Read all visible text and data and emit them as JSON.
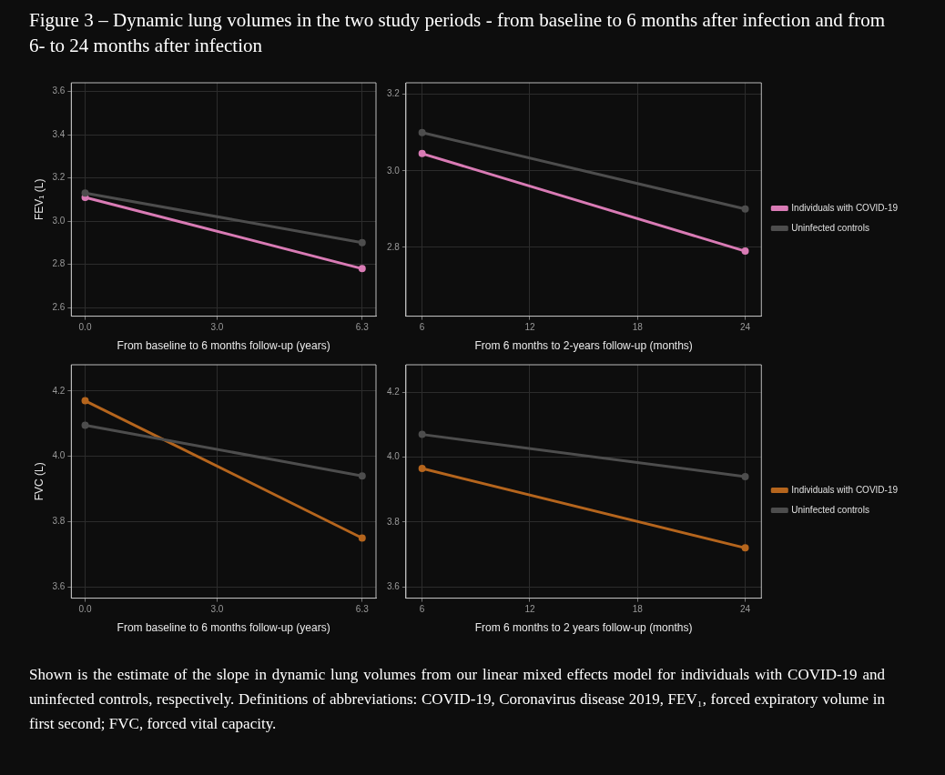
{
  "chart_data": [
    {
      "type": "line",
      "title": "Figure 3 – Dynamic lung volumes in the two study periods - from baseline to 6 months after infection and from 6- to 24 months after infection",
      "xlabel": "From baseline to 6 months follow-up (years)",
      "ylabel": "FEV₁ (L)",
      "x": [
        0,
        6.3
      ],
      "series": [
        {
          "color": "#4d4d4d",
          "values": [
            3.13,
            2.9
          ]
        },
        {
          "color": "#d97bb5",
          "values": [
            3.11,
            2.78
          ]
        }
      ],
      "xlim": [
        -0.315,
        6.615
      ],
      "xticks": [
        {
          "value": 0,
          "label": "0.0"
        },
        {
          "value": 3,
          "label": "3.0"
        },
        {
          "value": 6.3,
          "label": "6.3"
        }
      ],
      "ylim": [
        2.56,
        3.64
      ],
      "yticks": [
        {
          "value": 2.6,
          "label": "2.6"
        },
        {
          "value": 2.8,
          "label": "2.8"
        },
        {
          "value": 3,
          "label": "3.0"
        },
        {
          "value": 3.2,
          "label": "3.2"
        },
        {
          "value": 3.4,
          "label": "3.4"
        },
        {
          "value": 3.6,
          "label": "3.6"
        }
      ],
      "grid": true,
      "legend": false,
      "marker": "circle"
    },
    {
      "type": "line",
      "xlabel": "From 6 months to 2-years follow-up (months)",
      "x": [
        6,
        24
      ],
      "series": [
        {
          "name": "Individuals with COVID-19",
          "color": "#d97bb5",
          "values": [
            3.045,
            2.79
          ]
        },
        {
          "name": "Uninfected controls",
          "color": "#4d4d4d",
          "values": [
            3.1,
            2.9
          ]
        }
      ],
      "xlim": [
        5.1,
        24.9
      ],
      "xticks": [
        6,
        12,
        18,
        24
      ],
      "ylim": [
        2.62,
        3.23
      ],
      "yticks": [
        {
          "value": 2.8,
          "label": "2.8"
        },
        {
          "value": 3,
          "label": "3.0"
        },
        {
          "value": 3.2,
          "label": "3.2"
        }
      ],
      "grid": true,
      "legend": "right",
      "marker": "circle"
    },
    {
      "type": "line",
      "xlabel": "From baseline to 6 months follow-up (years)",
      "ylabel": "FVC (L)",
      "x": [
        0,
        6.3
      ],
      "series": [
        {
          "color": "#4d4d4d",
          "values": [
            4.095,
            3.94
          ]
        },
        {
          "color": "#b5651d",
          "values": [
            4.17,
            3.75
          ]
        }
      ],
      "xlim": [
        -0.315,
        6.615
      ],
      "xticks": [
        {
          "value": 0,
          "label": "0.0"
        },
        {
          "value": 3,
          "label": "3.0"
        },
        {
          "value": 6.3,
          "label": "6.3"
        }
      ],
      "ylim": [
        3.566,
        4.28
      ],
      "yticks": [
        {
          "value": 3.6,
          "label": "3.6"
        },
        {
          "value": 3.8,
          "label": "3.8"
        },
        {
          "value": 4,
          "label": "4.0"
        },
        {
          "value": 4.2,
          "label": "4.2"
        }
      ],
      "grid": true,
      "legend": false,
      "marker": "circle"
    },
    {
      "type": "line",
      "xlabel": "From 6 months to 2 years follow-up (months)",
      "x": [
        6,
        24
      ],
      "series": [
        {
          "name": "Individuals with COVID-19",
          "color": "#b5651d",
          "values": [
            3.965,
            3.72
          ]
        },
        {
          "name": "Uninfected controls",
          "color": "#4d4d4d",
          "values": [
            4.07,
            3.94
          ]
        }
      ],
      "xlim": [
        5.1,
        24.9
      ],
      "xticks": [
        6,
        12,
        18,
        24
      ],
      "ylim": [
        3.565,
        4.285
      ],
      "yticks": [
        {
          "value": 3.6,
          "label": "3.6"
        },
        {
          "value": 3.8,
          "label": "3.8"
        },
        {
          "value": 4,
          "label": "4.0"
        },
        {
          "value": 4.2,
          "label": "4.2"
        }
      ],
      "grid": true,
      "legend": "right",
      "marker": "circle",
      "annotations": [
        "Shown is the estimate of the slope in dynamic lung volumes from our linear mixed effects model for individuals with COVID-19 and uninfected controls, respectively. Definitions of abbreviations: COVID-19, Coronavirus disease 2019, FEV₁, forced expiratory volume in first second; FVC, forced vital capacity."
      ]
    }
  ]
}
